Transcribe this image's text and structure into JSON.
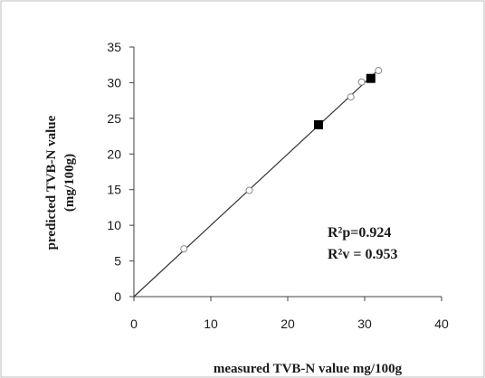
{
  "chart_data": {
    "type": "scatter",
    "xlabel": "measured TVB-N value mg/100g",
    "ylabel_line1": "predicted TVB-N value",
    "ylabel_line2": "(mg/100g)",
    "xlim": [
      0,
      40
    ],
    "ylim": [
      0,
      35
    ],
    "x_ticks": [
      "0",
      "10",
      "20",
      "30",
      "40"
    ],
    "y_ticks": [
      "0",
      "5",
      "10",
      "15",
      "20",
      "25",
      "30",
      "35"
    ],
    "grid": false,
    "series": [
      {
        "marker": "open-circle",
        "points": [
          {
            "x": 6.5,
            "y": 6.7
          },
          {
            "x": 15.0,
            "y": 14.9
          },
          {
            "x": 28.2,
            "y": 28.0
          },
          {
            "x": 29.6,
            "y": 30.1
          },
          {
            "x": 31.8,
            "y": 31.7
          }
        ]
      },
      {
        "marker": "filled-square",
        "points": [
          {
            "x": 24.0,
            "y": 24.1
          },
          {
            "x": 30.8,
            "y": 30.6
          }
        ]
      }
    ],
    "fit_line": {
      "x": [
        0,
        31.8
      ],
      "y": [
        0,
        31.8
      ]
    },
    "annotations": [
      {
        "text": "R²p=0.924"
      },
      {
        "text": "R²v = 0.953"
      }
    ],
    "colors": {
      "axis": "#404040",
      "line": "#333333",
      "marker_open": "#888888",
      "marker_filled": "#000000",
      "border": "#bdbdbd"
    }
  }
}
